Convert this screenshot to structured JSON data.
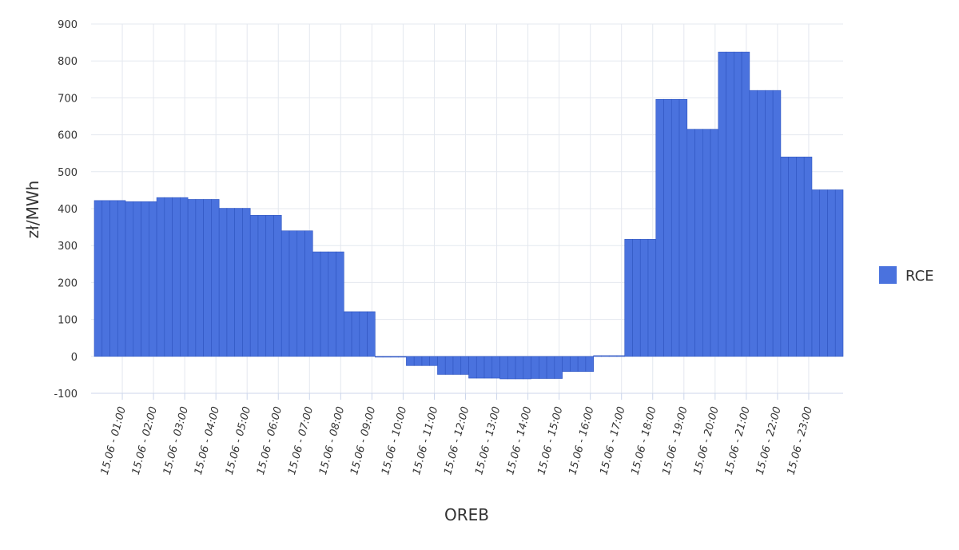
{
  "chart_data": {
    "type": "bar",
    "xlabel": "OREB",
    "ylabel": "zł/MWh",
    "ylim": [
      -100,
      900
    ],
    "yticks": [
      -100,
      0,
      100,
      200,
      300,
      400,
      500,
      600,
      700,
      800,
      900
    ],
    "grid": true,
    "legend_position": "right",
    "x_tick_labels": [
      "15.06 - 01:00",
      "15.06 - 02:00",
      "15.06 - 03:00",
      "15.06 - 04:00",
      "15.06 - 05:00",
      "15.06 - 06:00",
      "15.06 - 07:00",
      "15.06 - 08:00",
      "15.06 - 09:00",
      "15.06 - 10:00",
      "15.06 - 11:00",
      "15.06 - 12:00",
      "15.06 - 13:00",
      "15.06 - 14:00",
      "15.06 - 15:00",
      "15.06 - 16:00",
      "15.06 - 17:00",
      "15.06 - 18:00",
      "15.06 - 19:00",
      "15.06 - 20:00",
      "15.06 - 21:00",
      "15.06 - 22:00",
      "15.06 - 23:00"
    ],
    "series": [
      {
        "name": "RCE",
        "color": "#4a72de",
        "values": [
          422,
          422,
          422,
          422,
          419,
          419,
          419,
          419,
          430,
          430,
          430,
          430,
          425,
          425,
          425,
          425,
          401,
          401,
          401,
          401,
          382,
          382,
          382,
          382,
          340,
          340,
          340,
          340,
          283,
          283,
          283,
          283,
          121,
          121,
          121,
          121,
          -2,
          -2,
          -2,
          -2,
          -25,
          -25,
          -25,
          -25,
          -49,
          -49,
          -49,
          -49,
          -59,
          -59,
          -59,
          -59,
          -61,
          -61,
          -61,
          -61,
          -60,
          -60,
          -60,
          -60,
          -41,
          -41,
          -41,
          -41,
          2,
          2,
          2,
          2,
          317,
          317,
          317,
          317,
          696,
          696,
          696,
          696,
          615,
          615,
          615,
          615,
          824,
          824,
          824,
          824,
          720,
          720,
          720,
          720,
          540,
          540,
          540,
          540,
          451,
          451,
          451,
          451
        ]
      }
    ]
  }
}
